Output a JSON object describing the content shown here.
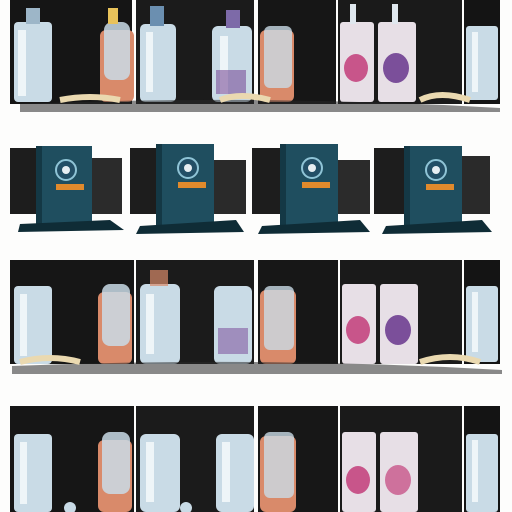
{
  "scene": {
    "background": "#fdfdfc",
    "description_colors": {
      "dark": "#151515",
      "bottle_glass": "#c9dbe6",
      "bottle_highlight": "#eef5f8",
      "cap_blue": "#6b8fb0",
      "skin": "#d98a6a",
      "pink": "#c8558a",
      "purple": "#7b4f9a",
      "cream": "#ead9b0",
      "teal_box": "#1f4e5f",
      "teal_dark": "#143845",
      "orange_label": "#e08a2c"
    },
    "rows": [
      {
        "kind": "bottle-strip"
      },
      {
        "kind": "box-strip"
      },
      {
        "kind": "bottle-strip"
      },
      {
        "kind": "bottle-strip"
      }
    ],
    "box_count": 4
  }
}
